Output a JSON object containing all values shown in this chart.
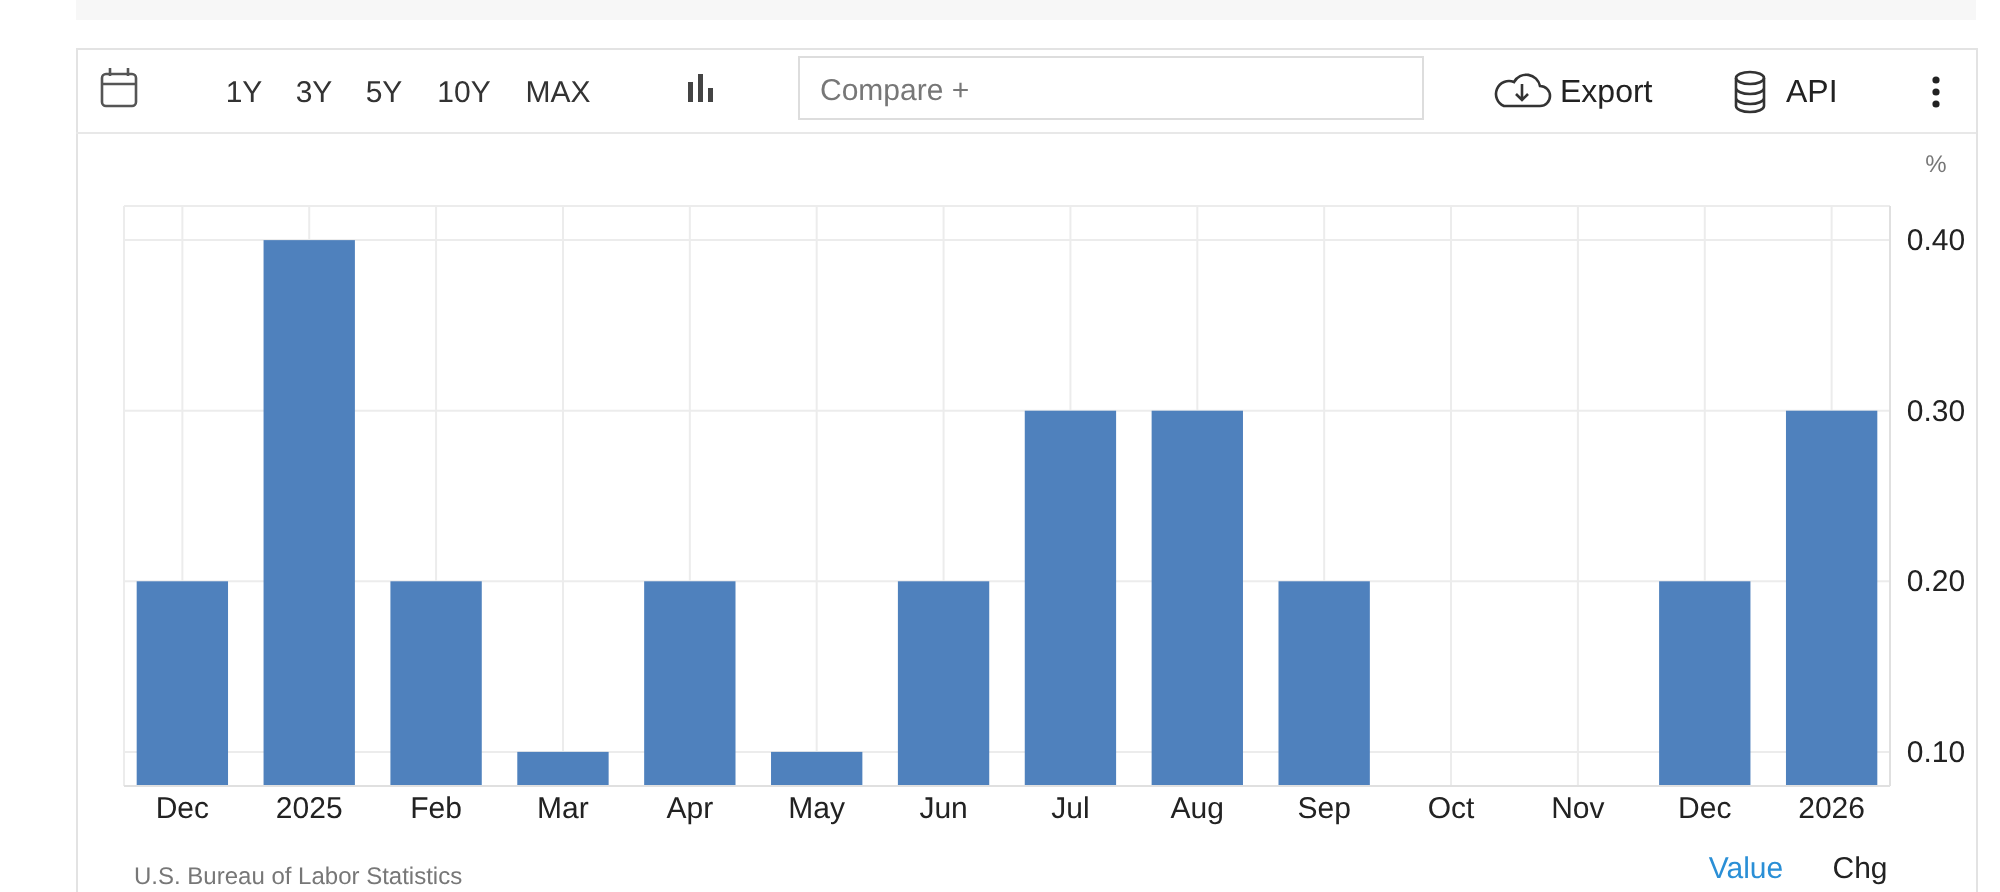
{
  "chart_data": {
    "type": "bar",
    "ylabel": "%",
    "categories": [
      "Dec",
      "2025",
      "Feb",
      "Mar",
      "Apr",
      "May",
      "Jun",
      "Jul",
      "Aug",
      "Sep",
      "Oct",
      "Nov",
      "Dec",
      "2026"
    ],
    "values": [
      0.2,
      0.4,
      0.2,
      0.1,
      0.2,
      0.1,
      0.2,
      0.3,
      0.3,
      0.2,
      null,
      null,
      0.2,
      0.3
    ],
    "color": "#4f81bd",
    "ylim": [
      0.08,
      0.42
    ],
    "yticks": [
      {
        "value": 0.1,
        "label": "0.10"
      },
      {
        "value": 0.2,
        "label": "0.20"
      },
      {
        "value": 0.3,
        "label": "0.30"
      },
      {
        "value": 0.4,
        "label": "0.40"
      }
    ],
    "grid": true,
    "annotations": [
      "U.S. Bureau of Labor Statistics",
      "1Y",
      "3Y",
      "5Y",
      "10Y",
      "MAX",
      "Compare +",
      "Export",
      "API",
      "Value",
      "Chg"
    ]
  }
}
